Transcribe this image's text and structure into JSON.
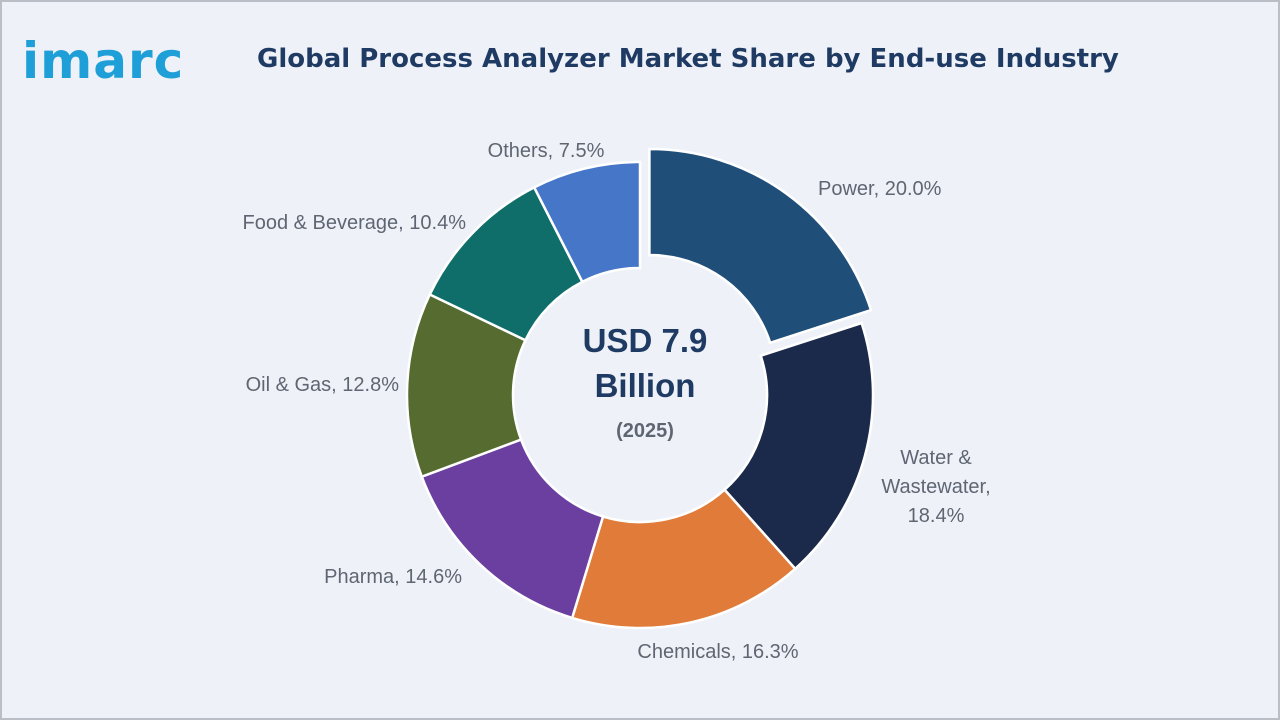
{
  "logo": {
    "text": "imarc"
  },
  "header": {
    "title": "Global Process Analyzer Market Share by End-use Industry"
  },
  "center": {
    "line1": "USD 7.9",
    "line2": "Billion",
    "line3": "(2025)"
  },
  "chart_data": {
    "type": "pie",
    "title": "Global Process Analyzer Market Share by End-use Industry",
    "unit": "%",
    "categories": [
      "Power",
      "Water & Wastewater",
      "Chemicals",
      "Pharma",
      "Oil & Gas",
      "Food & Beverage",
      "Others"
    ],
    "values": [
      20.0,
      18.4,
      16.3,
      14.6,
      12.8,
      10.4,
      7.5
    ],
    "labels": [
      [
        "Power, 20.0%"
      ],
      [
        "Water &",
        "Wastewater,",
        "18.4%"
      ],
      [
        "Chemicals, 16.3%"
      ],
      [
        "Pharma, 14.6%"
      ],
      [
        "Oil & Gas, 12.8%"
      ],
      [
        "Food & Beverage, 10.4%"
      ],
      [
        "Others, 7.5%"
      ]
    ],
    "colors": [
      "#1f4e79",
      "#1b2a4a",
      "#e07b39",
      "#6b3fa0",
      "#556b2f",
      "#0f6e6a",
      "#4676c8"
    ],
    "exploded": [
      "Power"
    ],
    "donut": true,
    "legend": "none"
  }
}
